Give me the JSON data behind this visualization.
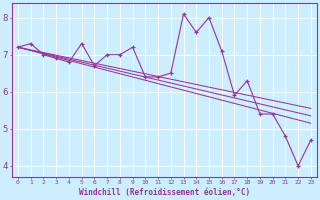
{
  "x": [
    0,
    1,
    2,
    3,
    4,
    5,
    6,
    7,
    8,
    9,
    10,
    11,
    12,
    13,
    14,
    15,
    16,
    17,
    18,
    19,
    20,
    21,
    22,
    23
  ],
  "y_main": [
    7.2,
    7.3,
    7.0,
    6.9,
    6.8,
    7.3,
    6.7,
    7.0,
    7.0,
    7.2,
    6.4,
    6.4,
    6.5,
    8.1,
    7.6,
    8.0,
    7.1,
    5.9,
    6.3,
    5.4,
    5.4,
    4.8,
    4.0,
    4.7
  ],
  "reg_lines": [
    {
      "x0": 0,
      "y0": 7.2,
      "x1": 23,
      "y1": 5.55
    },
    {
      "x0": 0,
      "y0": 7.2,
      "x1": 23,
      "y1": 5.35
    },
    {
      "x0": 0,
      "y0": 7.2,
      "x1": 23,
      "y1": 5.15
    }
  ],
  "color": "#993399",
  "bg_color": "#cceeff",
  "xlabel": "Windchill (Refroidissement éolien,°C)",
  "yticks": [
    4,
    5,
    6,
    7,
    8
  ],
  "xticks": [
    0,
    1,
    2,
    3,
    4,
    5,
    6,
    7,
    8,
    9,
    10,
    11,
    12,
    13,
    14,
    15,
    16,
    17,
    18,
    19,
    20,
    21,
    22,
    23
  ],
  "xlim": [
    -0.5,
    23.5
  ],
  "ylim": [
    3.7,
    8.4
  ]
}
